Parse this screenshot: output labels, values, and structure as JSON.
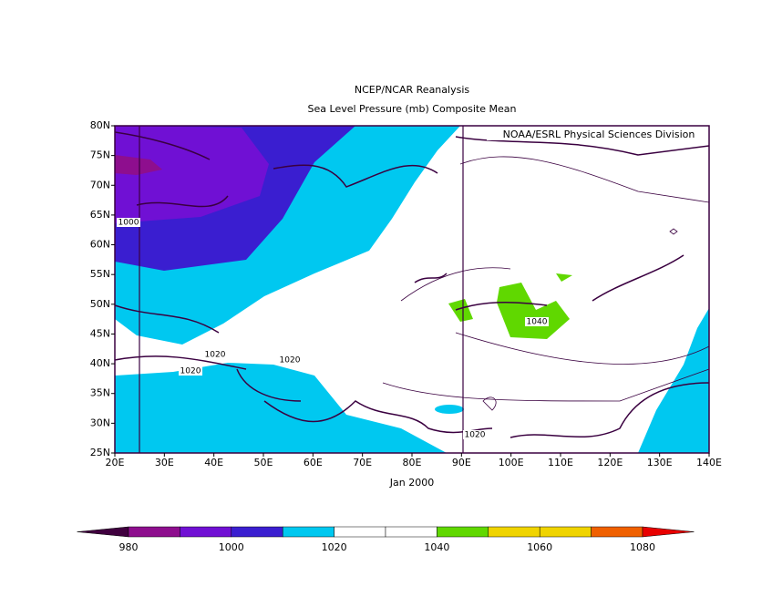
{
  "header": {
    "title": "NCEP/NCAR Reanalysis",
    "subtitle": "Sea Level Pressure (mb) Composite Mean",
    "credit": "NOAA/ESRL Physical Sciences Division",
    "period": "Jan 2000"
  },
  "map": {
    "lonlim": [
      20,
      140
    ],
    "latlim": [
      25,
      80
    ],
    "lonticks": [
      {
        "value": 20,
        "label": "20E"
      },
      {
        "value": 30,
        "label": "30E"
      },
      {
        "value": 40,
        "label": "40E"
      },
      {
        "value": 50,
        "label": "50E"
      },
      {
        "value": 60,
        "label": "60E"
      },
      {
        "value": 70,
        "label": "70E"
      },
      {
        "value": 80,
        "label": "80E"
      },
      {
        "value": 90,
        "label": "90E"
      },
      {
        "value": 100,
        "label": "100E"
      },
      {
        "value": 110,
        "label": "110E"
      },
      {
        "value": 120,
        "label": "120E"
      },
      {
        "value": 130,
        "label": "130E"
      },
      {
        "value": 140,
        "label": "140E"
      }
    ],
    "latticks": [
      {
        "value": 25,
        "label": "25N"
      },
      {
        "value": 30,
        "label": "30N"
      },
      {
        "value": 35,
        "label": "35N"
      },
      {
        "value": 40,
        "label": "40N"
      },
      {
        "value": 45,
        "label": "45N"
      },
      {
        "value": 50,
        "label": "50N"
      },
      {
        "value": 55,
        "label": "55N"
      },
      {
        "value": 60,
        "label": "60N"
      },
      {
        "value": 65,
        "label": "65N"
      },
      {
        "value": 70,
        "label": "70N"
      },
      {
        "value": 75,
        "label": "75N"
      },
      {
        "value": 80,
        "label": "80N"
      }
    ],
    "contour_labels": [
      "1000",
      "1020",
      "1020",
      "1020",
      "1020",
      "1040"
    ]
  },
  "colorbar": {
    "levels": [
      980,
      1000,
      1020,
      1040,
      1060,
      1080
    ],
    "colors": [
      "#40003f",
      "#8e0e8e",
      "#7010d4",
      "#3a1ed0",
      "#00c8f0",
      "#ffffff",
      "#ffffff",
      "#60d800",
      "#f0d400",
      "#f0d400",
      "#f06000",
      "#e80000"
    ]
  }
}
